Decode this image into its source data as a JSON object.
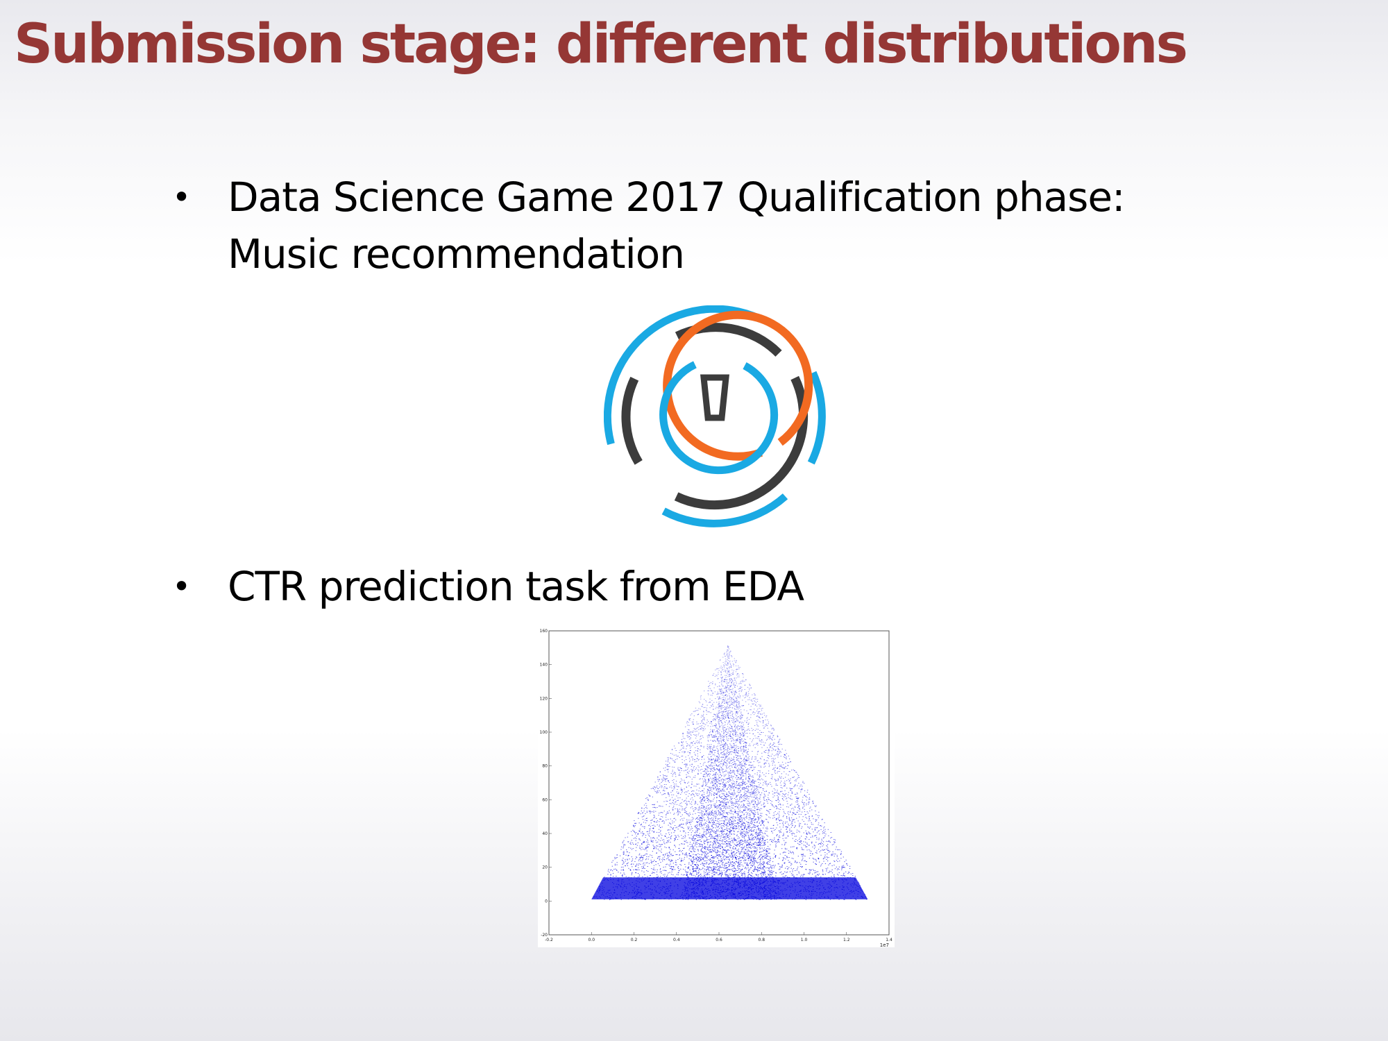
{
  "slide": {
    "title": "Submission stage: different distributions",
    "bullets": [
      {
        "line1": "Data Science Game 2017 Qualification phase:",
        "line2": "Music recommendation"
      },
      {
        "line1": "CTR prediction task from EDA"
      }
    ],
    "bullet_glyph": "•",
    "logo": {
      "icon": "data-science-game-logo-icon",
      "colors": {
        "blue": "#1aa9e3",
        "orange": "#f26a21",
        "dark": "#3c3c3c"
      }
    }
  },
  "chart_data": {
    "type": "scatter",
    "title": "",
    "xlabel": "",
    "ylabel": "",
    "x_offset_label": "1e7",
    "color": "#0000dd",
    "xlim": [
      -0.2,
      1.4
    ],
    "ylim": [
      -20,
      160
    ],
    "x_ticks": [
      "-0.2",
      "0.0",
      "0.2",
      "0.4",
      "0.6",
      "0.8",
      "1.0",
      "1.2",
      "1.4"
    ],
    "y_ticks": [
      "-20",
      "0",
      "20",
      "40",
      "60",
      "80",
      "100",
      "120",
      "140",
      "160"
    ],
    "x_tick_values": [
      -0.2,
      0.0,
      0.2,
      0.4,
      0.6,
      0.8,
      1.0,
      1.2,
      1.4
    ],
    "y_tick_values": [
      -20,
      0,
      20,
      40,
      60,
      80,
      100,
      120,
      140,
      160
    ],
    "series": [
      {
        "shape": "triangle",
        "apex": [
          0.64,
          152
        ],
        "base_left": [
          0.0,
          1
        ],
        "base_right": [
          1.3,
          1
        ],
        "density": "dense near y=0, sparse near apex"
      }
    ]
  }
}
